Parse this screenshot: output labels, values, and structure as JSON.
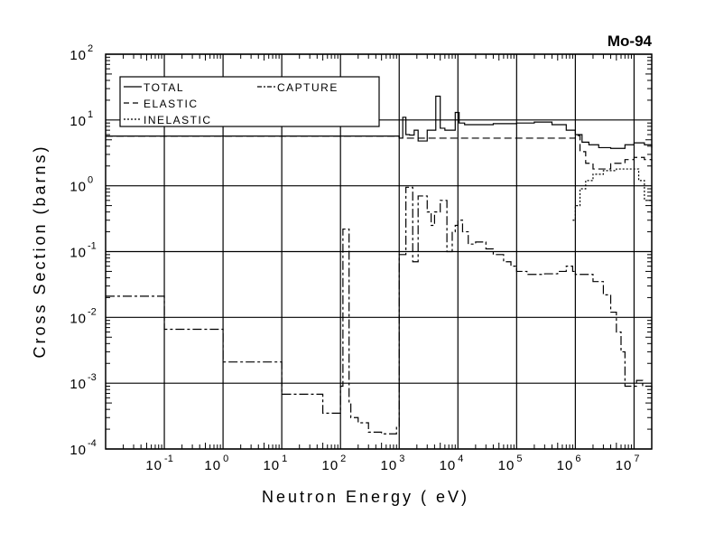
{
  "chart_data": {
    "type": "line",
    "title": "Mo-94",
    "xlabel": "Neutron Energy ( eV)",
    "ylabel": "Cross Section (barns)",
    "xscale": "log",
    "yscale": "log",
    "xlim": [
      0.01,
      20000000
    ],
    "ylim": [
      0.0001,
      100
    ],
    "grid": true,
    "legend_position": "top-left",
    "x_tick_exponents": [
      "-1",
      "0",
      "1",
      "2",
      "3",
      "4",
      "5",
      "6",
      "7"
    ],
    "y_tick_exponents": [
      "2",
      "1",
      "0",
      "-1",
      "-2",
      "-3",
      "-4"
    ],
    "tick_base": "10",
    "series": [
      {
        "name": "TOTAL",
        "style": "solid",
        "x": [
          0.01,
          100,
          1000,
          1150,
          1300,
          1500,
          1800,
          2100,
          3000,
          4200,
          5000,
          6000,
          8000,
          9000,
          10500,
          13000,
          20000,
          40000,
          100000,
          200000,
          400000,
          700000,
          1000000,
          1300000,
          1700000,
          2500000,
          4000000,
          7000000,
          10000000,
          15000000,
          20000000
        ],
        "y": [
          5.7,
          5.7,
          5.3,
          11,
          6,
          5.9,
          7,
          4.8,
          7,
          23,
          7.5,
          7,
          7,
          13,
          9,
          8.5,
          8.5,
          8.8,
          9,
          9.3,
          8.5,
          7,
          6,
          4.6,
          4.2,
          3.8,
          3.7,
          4.2,
          4.5,
          4.2,
          3.8
        ]
      },
      {
        "name": "CAPTURE",
        "style": "dash-dot",
        "x": [
          0.01,
          0.1,
          1,
          10,
          50,
          90,
          100,
          110,
          140,
          150,
          200,
          300,
          500,
          900,
          1000,
          1200,
          1300,
          1500,
          1700,
          2000,
          2100,
          3000,
          3500,
          4000,
          5000,
          6000,
          6500,
          7500,
          8000,
          9000,
          10000,
          12000,
          15000,
          20000,
          30000,
          40000,
          60000,
          80000,
          100000,
          150000,
          300000,
          500000,
          700000,
          900000,
          1000000,
          1500000,
          2000000,
          3000000,
          4000000,
          5000000,
          6000000,
          7000000,
          9000000,
          11000000,
          14000000,
          20000000
        ],
        "y": [
          0.021,
          0.0066,
          0.0021,
          0.00068,
          0.00035,
          0.00035,
          0.0009,
          0.22,
          0.0005,
          0.0003,
          0.00025,
          0.00018,
          0.00017,
          0.00022,
          0.09,
          0.09,
          0.95,
          0.95,
          0.07,
          0.07,
          0.7,
          0.4,
          0.25,
          0.4,
          0.6,
          0.6,
          0.1,
          0.1,
          0.2,
          0.25,
          0.3,
          0.2,
          0.13,
          0.14,
          0.11,
          0.09,
          0.07,
          0.06,
          0.05,
          0.045,
          0.046,
          0.05,
          0.06,
          0.05,
          0.045,
          0.045,
          0.035,
          0.022,
          0.012,
          0.006,
          0.003,
          0.0009,
          0.0009,
          0.0011,
          0.0009,
          0.0008
        ]
      },
      {
        "name": "ELASTIC",
        "style": "dashed",
        "x": [
          0.01,
          100,
          1000,
          1000000,
          1200000,
          1500000,
          2000000,
          4000000,
          7000000,
          10000000,
          15000000,
          20000000
        ],
        "y": [
          5.7,
          5.7,
          5.3,
          5.8,
          3.3,
          2.2,
          1.8,
          2.2,
          2.5,
          2.7,
          2.5,
          2.4
        ]
      },
      {
        "name": "INELASTIC",
        "style": "dotted",
        "x": [
          900000,
          1000000,
          1200000,
          1500000,
          2000000,
          3000000,
          5000000,
          10000000,
          12000000,
          15000000,
          20000000
        ],
        "y": [
          0.3,
          0.5,
          0.9,
          1.2,
          1.5,
          1.7,
          1.8,
          1.8,
          1.2,
          0.6,
          0.28
        ]
      }
    ]
  }
}
